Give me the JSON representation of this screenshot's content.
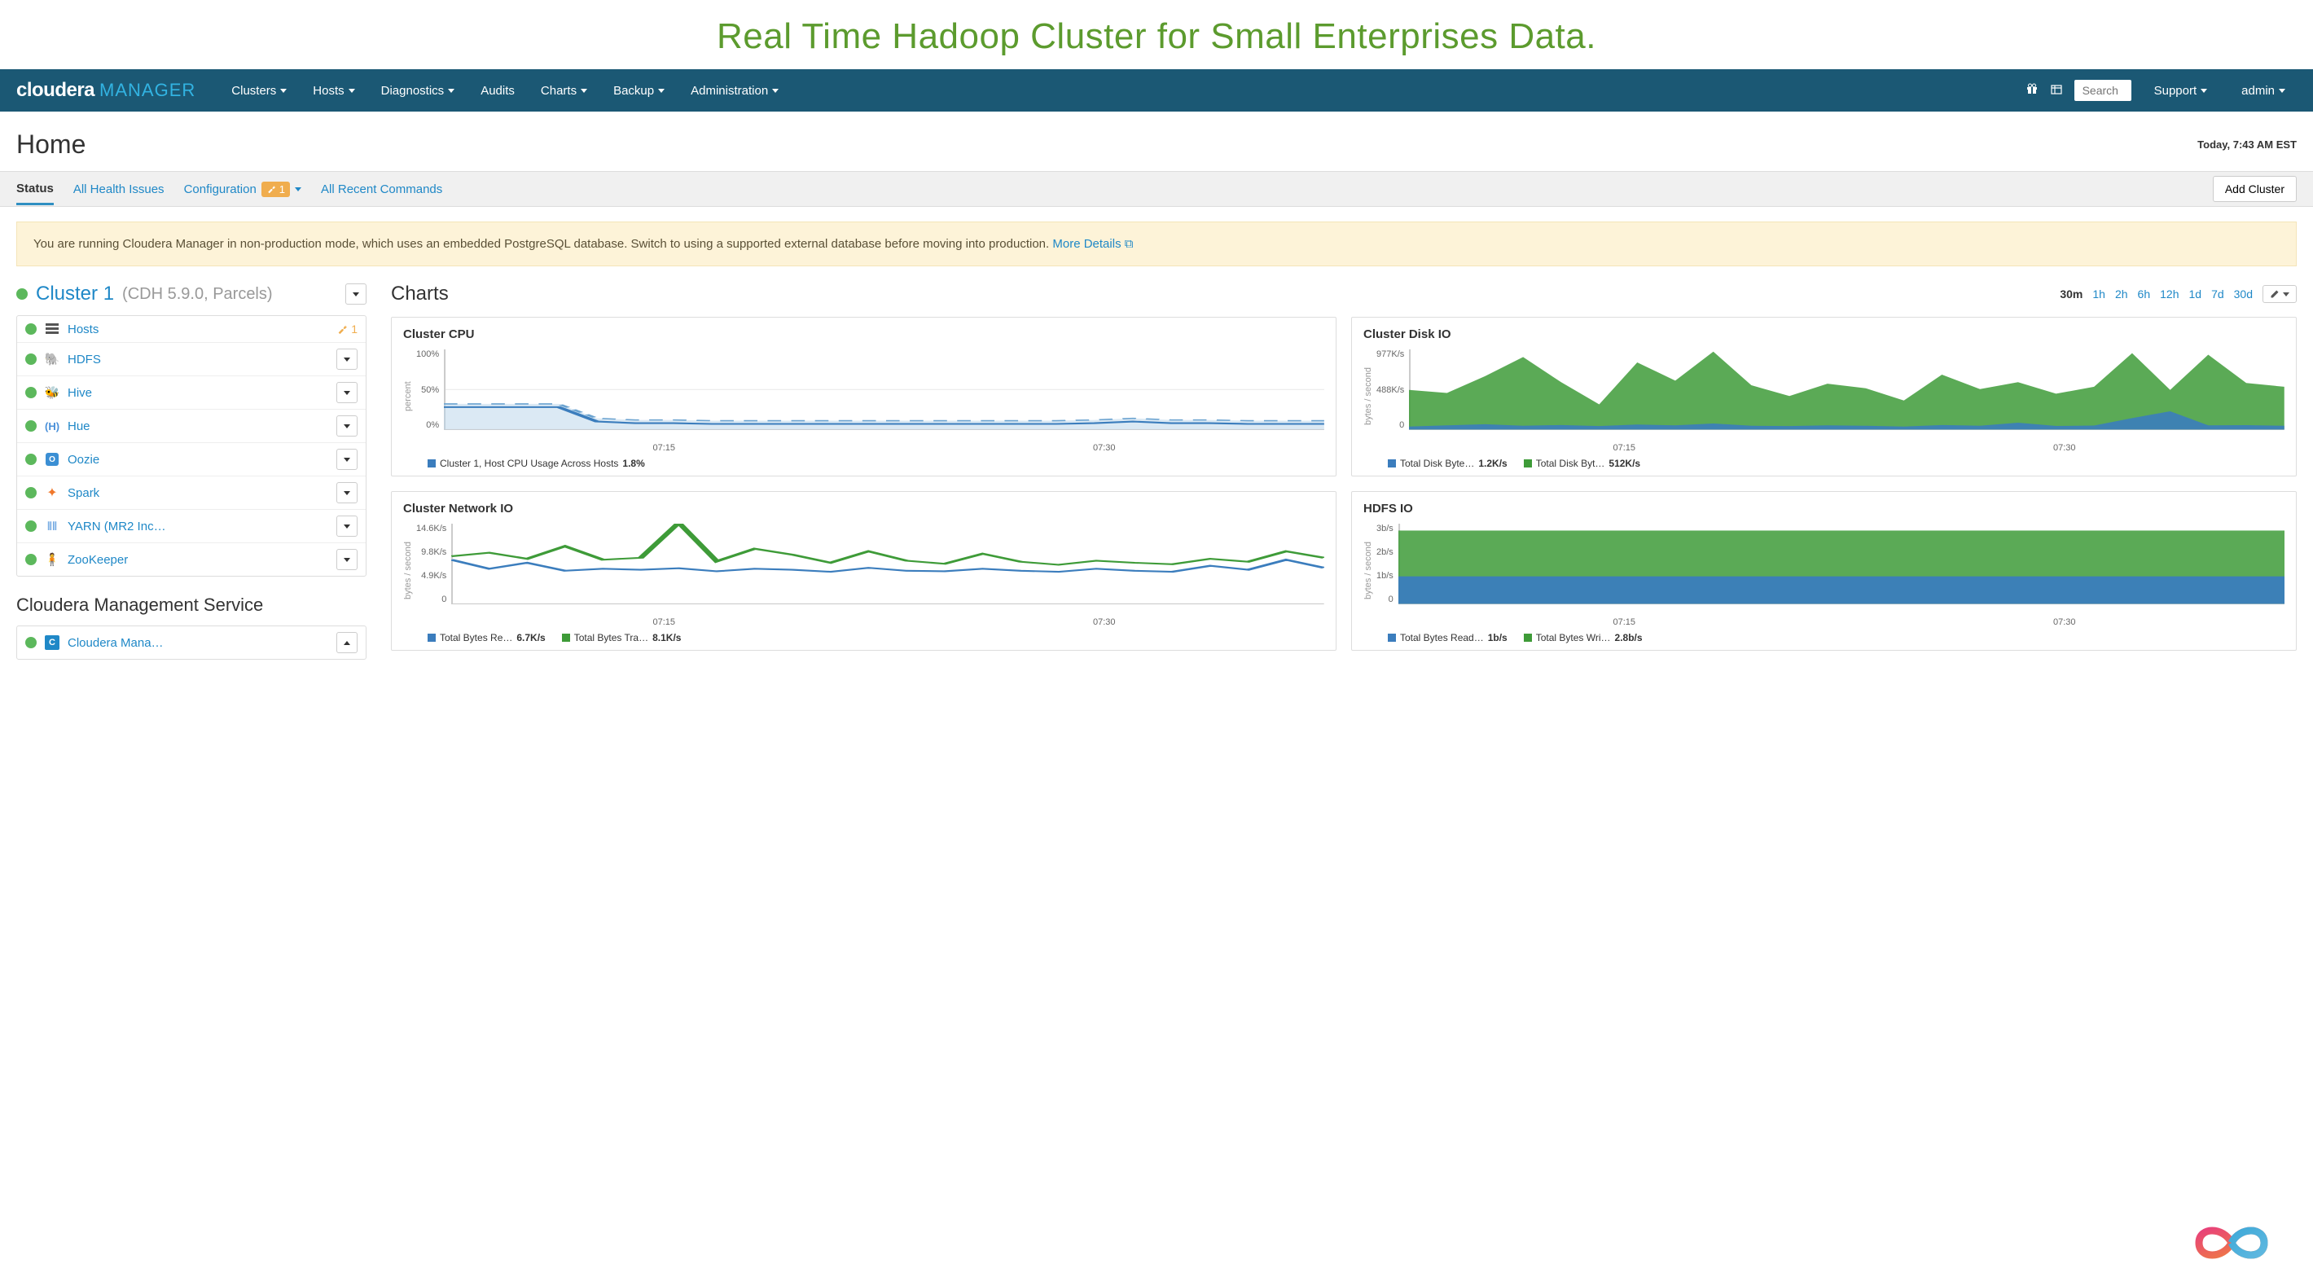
{
  "colors": {
    "navbar_bg": "#1b5874",
    "accent_blue": "#1f88c7",
    "brand_blue": "#32b3e2",
    "green_ok": "#5cb85c",
    "warn_orange": "#f0ad4e",
    "chart_blue": "#3b7dbd",
    "chart_green": "#3e9b38",
    "title_green": "#5c9b2e",
    "alert_bg": "#fdf3d8"
  },
  "banner_title": "Real Time Hadoop Cluster for Small Enterprises Data.",
  "brand": {
    "name": "cloudera",
    "product": "MANAGER"
  },
  "nav": [
    {
      "label": "Clusters",
      "dropdown": true
    },
    {
      "label": "Hosts",
      "dropdown": true
    },
    {
      "label": "Diagnostics",
      "dropdown": true
    },
    {
      "label": "Audits",
      "dropdown": false
    },
    {
      "label": "Charts",
      "dropdown": true
    },
    {
      "label": "Backup",
      "dropdown": true
    },
    {
      "label": "Administration",
      "dropdown": true
    }
  ],
  "nav_right": {
    "search_placeholder": "Search",
    "support": "Support",
    "user": "admin"
  },
  "page": {
    "title": "Home",
    "timestamp": "Today, 7:43 AM EST"
  },
  "tabs": {
    "status": "Status",
    "health": "All Health Issues",
    "config": "Configuration",
    "config_count": "1",
    "commands": "All Recent Commands",
    "add_cluster": "Add Cluster"
  },
  "alert": {
    "text": "You are running Cloudera Manager in non-production mode, which uses an embedded PostgreSQL database. Switch to using a supported external database before moving into production.",
    "link": "More Details"
  },
  "cluster": {
    "name": "Cluster 1",
    "meta": "(CDH 5.9.0, Parcels)",
    "services": [
      {
        "name": "Hosts",
        "icon": "hosts",
        "warn": "1",
        "dropdown": false
      },
      {
        "name": "HDFS",
        "icon": "hdfs",
        "dropdown": true
      },
      {
        "name": "Hive",
        "icon": "hive",
        "dropdown": true
      },
      {
        "name": "Hue",
        "icon": "hue",
        "dropdown": true
      },
      {
        "name": "Oozie",
        "icon": "oozie",
        "dropdown": true
      },
      {
        "name": "Spark",
        "icon": "spark",
        "dropdown": true
      },
      {
        "name": "YARN (MR2 Inc…",
        "icon": "yarn",
        "dropdown": true
      },
      {
        "name": "ZooKeeper",
        "icon": "zk",
        "dropdown": true
      }
    ]
  },
  "mgmt": {
    "title": "Cloudera Management Service",
    "name": "Cloudera Mana…"
  },
  "charts": {
    "title": "Charts",
    "ranges": [
      "30m",
      "1h",
      "2h",
      "6h",
      "12h",
      "1d",
      "7d",
      "30d"
    ],
    "active_range": "30m",
    "x_ticks": [
      "07:15",
      "07:30"
    ],
    "cpu": {
      "title": "Cluster CPU",
      "ylabel": "percent",
      "yticks": [
        "100%",
        "50%",
        "0%"
      ],
      "ylim": [
        0,
        100
      ],
      "series_blue": [
        28,
        28,
        28,
        28,
        10,
        8,
        8,
        7,
        7,
        7,
        7,
        7,
        7,
        7,
        7,
        7,
        7,
        8,
        10,
        8,
        8,
        7,
        7,
        7
      ],
      "fill_top": [
        32,
        32,
        32,
        32,
        14,
        12,
        12,
        11,
        11,
        11,
        11,
        11,
        11,
        11,
        11,
        11,
        11,
        12,
        14,
        12,
        12,
        11,
        11,
        11
      ],
      "legend": [
        {
          "label": "Cluster 1, Host CPU Usage Across Hosts",
          "value": "1.8%",
          "color": "#3b7dbd"
        }
      ]
    },
    "disk": {
      "title": "Cluster Disk IO",
      "ylabel": "bytes / second",
      "yticks": [
        "977K/s",
        "488K/s",
        "0"
      ],
      "ylim": [
        0,
        1050
      ],
      "series_green": [
        520,
        480,
        700,
        950,
        620,
        330,
        880,
        640,
        1020,
        580,
        440,
        600,
        540,
        380,
        720,
        530,
        620,
        470,
        560,
        1000,
        520,
        980,
        610,
        560
      ],
      "series_blue": [
        40,
        55,
        70,
        50,
        60,
        45,
        65,
        55,
        80,
        50,
        45,
        55,
        50,
        40,
        60,
        50,
        90,
        48,
        52,
        150,
        240,
        55,
        58,
        50
      ],
      "legend": [
        {
          "label": "Total Disk Byte…",
          "value": "1.2K/s",
          "color": "#3b7dbd"
        },
        {
          "label": "Total Disk Byt…",
          "value": "512K/s",
          "color": "#3e9b38"
        }
      ]
    },
    "net": {
      "title": "Cluster Network IO",
      "ylabel": "bytes / second",
      "yticks": [
        "14.6K/s",
        "9.8K/s",
        "4.9K/s",
        "0"
      ],
      "ylim": [
        0,
        16
      ],
      "series_green": [
        9.5,
        10.2,
        9.0,
        11.5,
        8.8,
        9.2,
        16.2,
        8.5,
        11.0,
        9.8,
        8.2,
        10.5,
        8.6,
        8.0,
        10.0,
        8.4,
        7.8,
        8.6,
        8.2,
        7.9,
        9.0,
        8.4,
        10.5,
        9.2
      ],
      "series_blue": [
        8.8,
        7.0,
        8.2,
        6.6,
        7.0,
        6.8,
        7.1,
        6.5,
        7.0,
        6.8,
        6.4,
        7.2,
        6.6,
        6.5,
        7.0,
        6.6,
        6.4,
        7.0,
        6.6,
        6.4,
        7.6,
        6.8,
        8.8,
        7.2
      ],
      "legend": [
        {
          "label": "Total Bytes Re…",
          "value": "6.7K/s",
          "color": "#3b7dbd"
        },
        {
          "label": "Total Bytes Tra…",
          "value": "8.1K/s",
          "color": "#3e9b38"
        }
      ]
    },
    "hdfs": {
      "title": "HDFS IO",
      "ylabel": "bytes / second",
      "yticks": [
        "3b/s",
        "2b/s",
        "1b/s",
        "0"
      ],
      "ylim": [
        0,
        3.5
      ],
      "series_green_flat": 3.2,
      "series_blue_flat": 1.2,
      "legend": [
        {
          "label": "Total Bytes Read…",
          "value": "1b/s",
          "color": "#3b7dbd"
        },
        {
          "label": "Total Bytes Wri…",
          "value": "2.8b/s",
          "color": "#3e9b38"
        }
      ]
    }
  }
}
